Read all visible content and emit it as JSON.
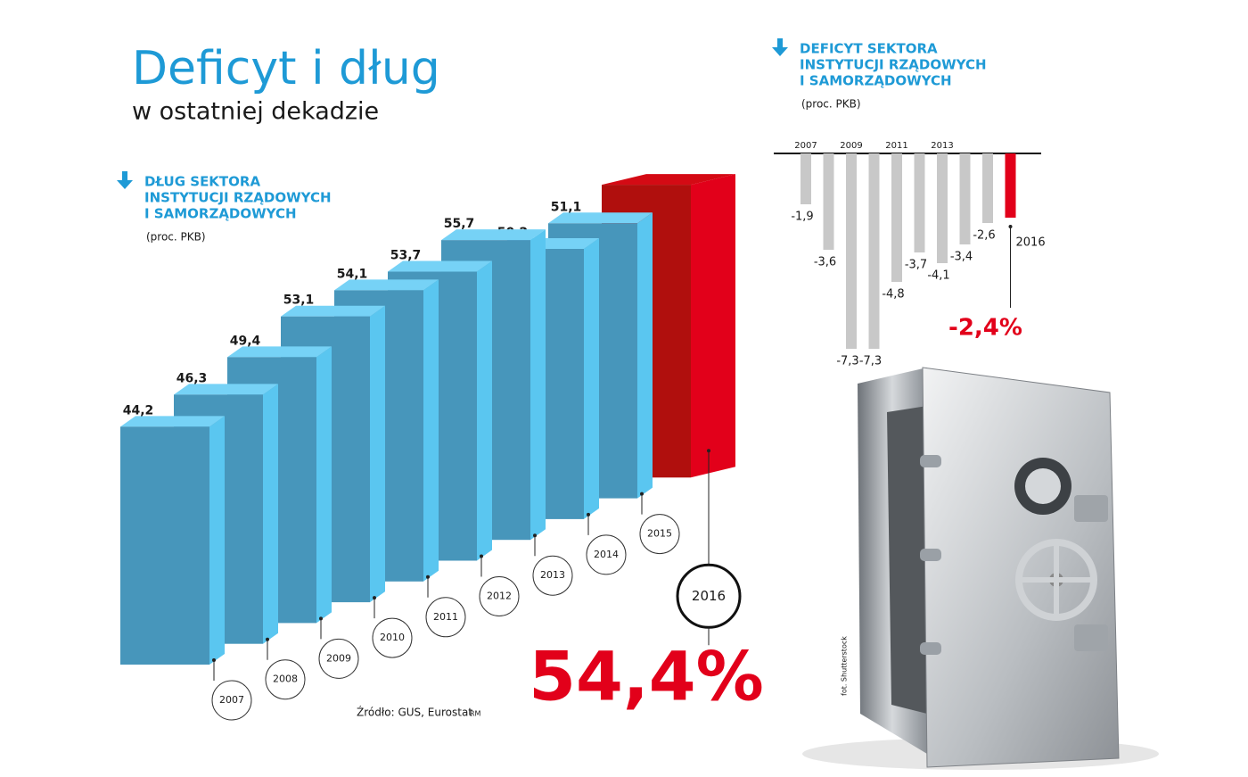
{
  "title": "Deficyt i dług",
  "subtitle": "w ostatniej dekadzie",
  "source": "Źródło: GUS, Eurostat",
  "author": "RM",
  "photo_credit": "fot. Shutterstock",
  "chart_data": [
    {
      "type": "bar3d",
      "title": [
        "DŁUG SEKTORA",
        "INSTYTUCJI RZĄDOWYCH",
        "I SAMORZĄDOWYCH"
      ],
      "unit": "(proc. PKB)",
      "categories": [
        "2007",
        "2008",
        "2009",
        "2010",
        "2011",
        "2012",
        "2013",
        "2014",
        "2015",
        "2016"
      ],
      "values": [
        44.2,
        46.3,
        49.4,
        53.1,
        54.1,
        53.7,
        55.7,
        50.2,
        51.1,
        54.4
      ],
      "value_labels": [
        "44,2",
        "46,3",
        "49,4",
        "53,1",
        "54,1",
        "53,7",
        "55,7",
        "50,2",
        "51,1",
        "54,4%"
      ],
      "colors": [
        "#4796bb",
        "#4796bb",
        "#4796bb",
        "#4796bb",
        "#4796bb",
        "#4796bb",
        "#4796bb",
        "#4796bb",
        "#4796bb",
        "#b00f0d"
      ],
      "ylim": [
        0,
        60
      ]
    },
    {
      "type": "bar",
      "title": [
        "DEFICYT SEKTORA",
        "INSTYTUCJI RZĄDOWYCH",
        "I SAMORZĄDOWYCH"
      ],
      "unit": "(proc. PKB)",
      "categories": [
        "2007",
        null,
        "2009",
        null,
        "2011",
        null,
        "2013",
        null,
        null,
        "2016"
      ],
      "values": [
        -1.9,
        -3.6,
        -7.3,
        -7.3,
        -4.8,
        -3.7,
        -4.1,
        -3.4,
        -2.6,
        -2.4
      ],
      "value_labels": [
        "-1,9",
        "-3,6",
        "-7,3",
        "-7,3",
        "-4,8",
        "-3,7",
        "-4,1",
        "-3,4",
        "-2,6",
        "-2,4%"
      ],
      "colors": [
        "#c8c8c8",
        "#c8c8c8",
        "#c8c8c8",
        "#c8c8c8",
        "#c8c8c8",
        "#c8c8c8",
        "#c8c8c8",
        "#c8c8c8",
        "#c8c8c8",
        "#e2001a"
      ],
      "ylim": [
        -8,
        0
      ]
    }
  ]
}
